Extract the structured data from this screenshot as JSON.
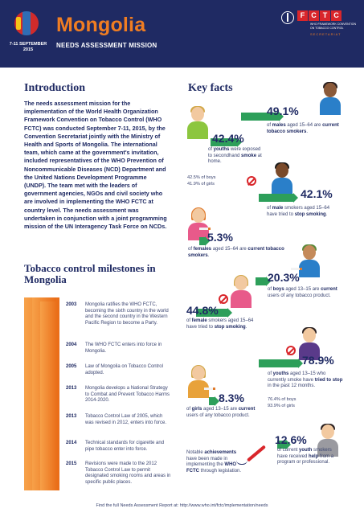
{
  "header": {
    "title": "Mongolia",
    "subtitle": "NEEDS ASSESSMENT MISSION",
    "dates_line1": "7-11 SEPTEMBER",
    "dates_line2": "2015",
    "fctc_letters": [
      "F",
      "C",
      "T",
      "C"
    ],
    "fctc_subtext": "WHO FRAMEWORK CONVENTION ON TOBACCO CONTROL",
    "fctc_secretariat": "SECRETARIAT",
    "colors": {
      "navy": "#1f2a63",
      "orange": "#f07d22",
      "red": "#d9262b",
      "green": "#2d9f5a"
    }
  },
  "intro": {
    "title": "Introduction",
    "text": "The needs assessment mission for the implementation of the World Health Organization Framework Convention on Tobacco Control (WHO FCTC) was conducted September 7-11, 2015, by the Convention Secretariat jointly with the Ministry of Health and Sports of Mongolia. The international team, which came at the government's invitation, included representatives of the WHO Prevention of Noncommunicable Diseases (NCD) Department and the United Nations Development Programme (UNDP). The team met with the leaders of government agencies, NGOs and civil society who are involved in implementing the WHO FCTC at country level. The needs assessment was undertaken in conjunction with a joint programming mission of the UN Interagency Task Force on NCDs."
  },
  "milestones": {
    "title": "Tobacco control milestones in Mongolia",
    "items": [
      {
        "year": "2003",
        "text": "Mongolia ratifies the WHO FCTC, becoming the sixth country in the world and the second country in the Western Pacific Region to become a Party."
      },
      {
        "year": "2004",
        "text": "The WHO FCTC enters into force in Mongolia."
      },
      {
        "year": "2005",
        "text": "Law of Mongolia on Tobacco Control adopted."
      },
      {
        "year": "2013",
        "text": "Mongolia develops a National Strategy to Combat and Prevent Tobacco Harms 2014-2020."
      },
      {
        "year": "2013",
        "text": "Tobacco Control Law of 2005, which was revised in 2012, enters into force."
      },
      {
        "year": "2014",
        "text": "Technical standards for cigarette and pipe tobacco enter into force."
      },
      {
        "year": "2015",
        "text": "Revisions were made to the 2012 Tobacco Control Law to permit designated smoking rooms and areas in specific public places."
      }
    ]
  },
  "key_facts": {
    "title": "Key facts",
    "facts": [
      {
        "pct": "49.1%",
        "text_pre": "of ",
        "bold1": "males",
        "text_mid": " aged 15–64 are ",
        "bold2": "current tobacco smokers",
        "text_post": "."
      },
      {
        "pct": "42.4%",
        "text_pre": "of ",
        "bold1": "youths",
        "text_mid": " were exposed to secondhand ",
        "bold2": "smoke",
        "text_post": " at home.",
        "sub1": "42.5% of boys",
        "sub2": "41.9% of girls"
      },
      {
        "pct": "42.1%",
        "text_pre": "of ",
        "bold1": "male",
        "text_mid": " smokers aged 15–64 have tried to ",
        "bold2": "stop smoking",
        "text_post": "."
      },
      {
        "pct": "5.3%",
        "text_pre": "of ",
        "bold1": "females",
        "text_mid": " aged 15–64 are ",
        "bold2": "current tobacco smokers",
        "text_post": "."
      },
      {
        "pct": "20.3%",
        "text_pre": "of ",
        "bold1": "boys",
        "text_mid": " aged 13–15 are ",
        "bold2": "current",
        "text_post": " users of any tobacco product."
      },
      {
        "pct": "44.8%",
        "text_pre": "of ",
        "bold1": "female",
        "text_mid": " smokers aged 15–64 have tried to ",
        "bold2": "stop smoking",
        "text_post": "."
      },
      {
        "pct": "78.9%",
        "text_pre": "of ",
        "bold1": "youths",
        "text_mid": " aged 13–15 who currently smoke have ",
        "bold2": "tried to stop",
        "text_post": " in the past 12 months.",
        "sub1": "76.4% of boys",
        "sub2": "93.9% of girls"
      },
      {
        "pct": "8.3%",
        "text_pre": "of ",
        "bold1": "girls",
        "text_mid": " aged 13–15 are ",
        "bold2": "current",
        "text_post": " users of any tobacco product."
      },
      {
        "pct": "12.6%",
        "text_pre": "of current ",
        "bold1": "youth",
        "text_mid": " smokers have received ",
        "bold2": "help",
        "text_post": " from a program or professional."
      }
    ],
    "achievements": {
      "pre": "Notable ",
      "bold1": "achievements",
      "mid": " have been made in implementing the ",
      "bold2": "WHO FCTC",
      "post": " through legislation."
    }
  },
  "footer": {
    "text": "Find the full Needs Assessment Report at: http://www.who.int/fctc/implementation/needs"
  }
}
